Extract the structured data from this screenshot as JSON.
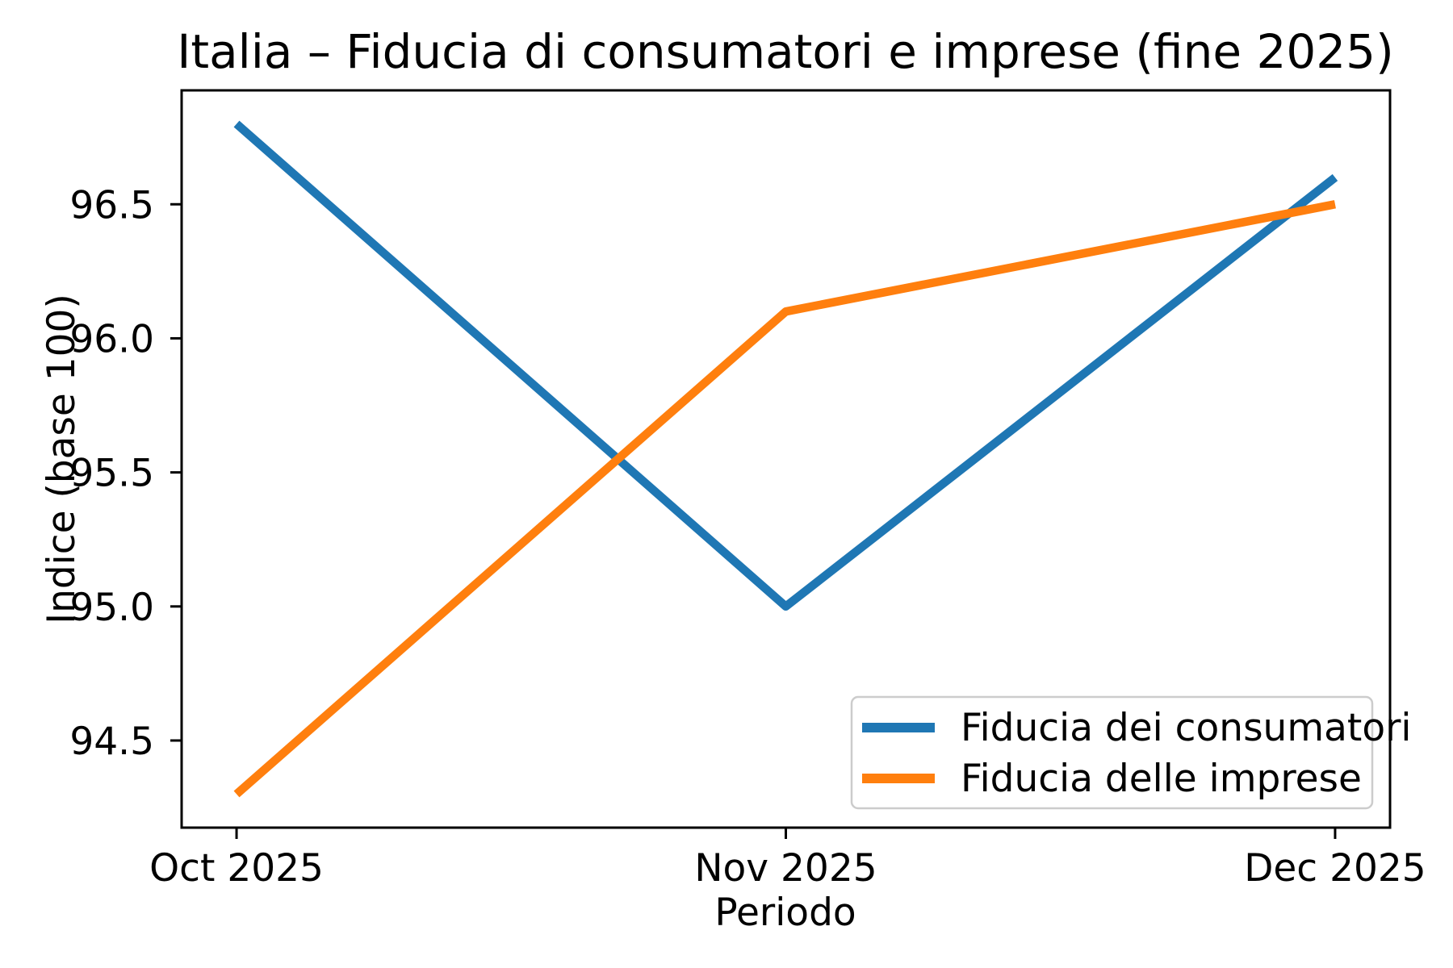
{
  "figure": {
    "background": "#ffffff",
    "axis_color": "#000000",
    "text_color": "#000000"
  },
  "chart_data": {
    "type": "line",
    "title": "Italia – Fiducia di consumatori e imprese (fine 2025)",
    "xlabel": "Periodo",
    "ylabel": "Indice (base 100)",
    "categories": [
      "Oct 2025",
      "Nov 2025",
      "Dec 2025"
    ],
    "series": [
      {
        "name": "Fiducia dei consumatori",
        "color": "#1f77b4",
        "values": [
          96.8,
          95.0,
          96.6
        ]
      },
      {
        "name": "Fiducia delle imprese",
        "color": "#ff7f0e",
        "values": [
          94.3,
          96.1,
          96.5
        ]
      }
    ],
    "yticks": [
      94.5,
      95.0,
      95.5,
      96.0,
      96.5
    ],
    "ylim": [
      94.175,
      96.925
    ],
    "grid": false,
    "legend": {
      "position": "lower right",
      "border_color": "#cccccc",
      "background": "#ffffff"
    }
  }
}
